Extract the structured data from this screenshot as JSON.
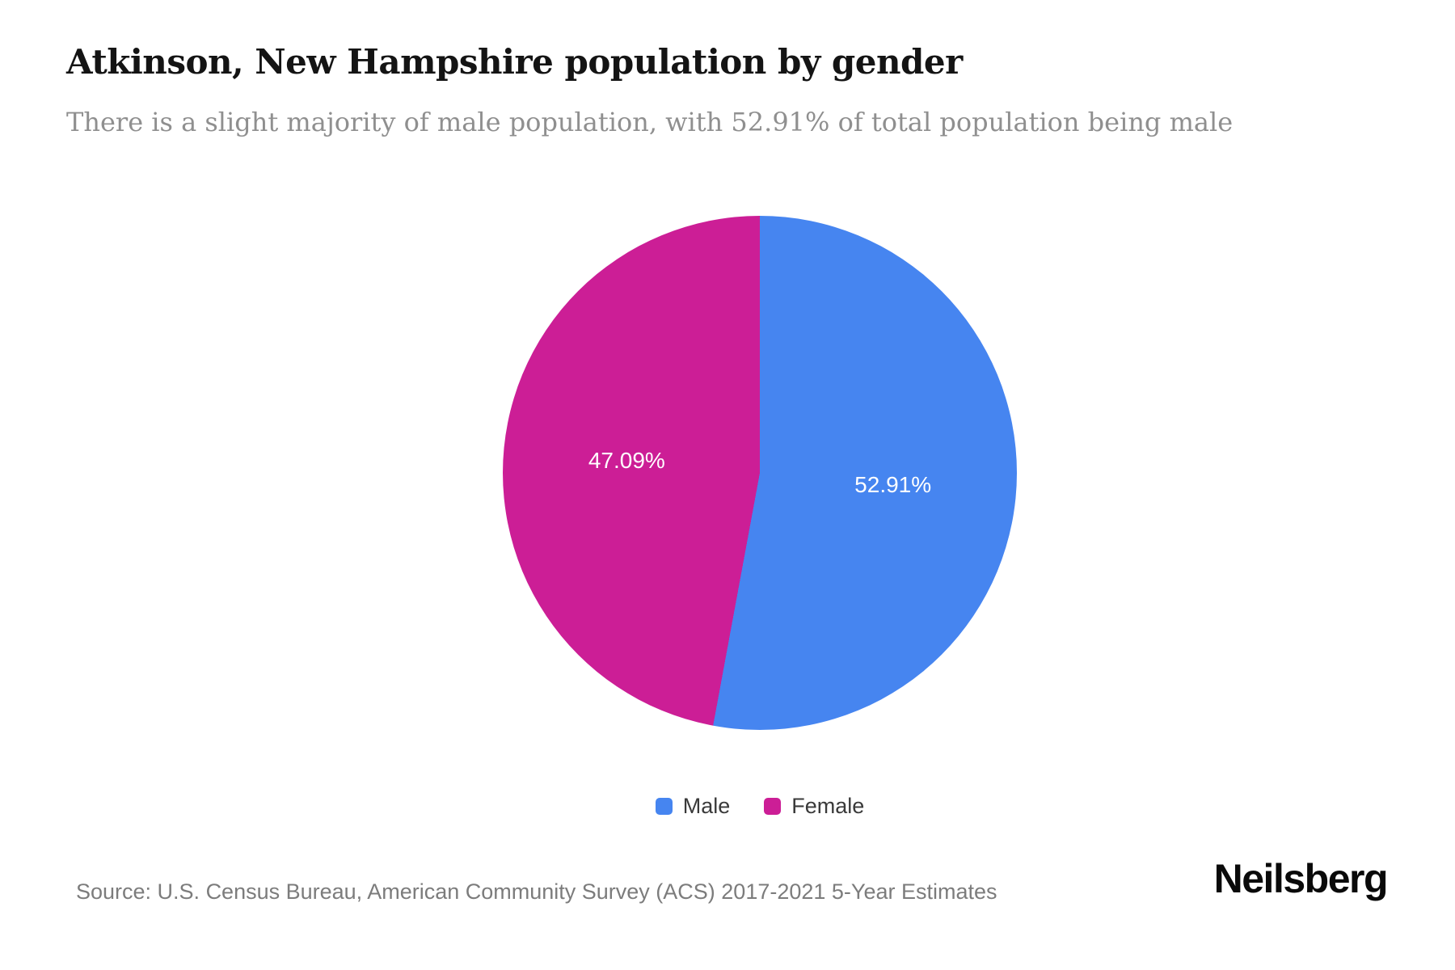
{
  "page": {
    "title": "Atkinson, New Hampshire population by gender",
    "subtitle": "There is a slight majority of male population, with 52.91% of total population being male"
  },
  "chart_data": {
    "type": "pie",
    "title": "Atkinson, New Hampshire population by gender",
    "categories": [
      "Male",
      "Female"
    ],
    "values": [
      52.91,
      47.09
    ],
    "unit": "percent of total population",
    "slice_labels": [
      "52.91%",
      "47.09%"
    ],
    "colors": [
      "#4685F0",
      "#CC1E96"
    ],
    "start_angle_deg": 0,
    "direction": "clockwise",
    "legend_position": "bottom",
    "label_color": "#ffffff"
  },
  "legend": {
    "items": [
      {
        "label": "Male",
        "color": "#4685F0"
      },
      {
        "label": "Female",
        "color": "#CC1E96"
      }
    ]
  },
  "footer": {
    "source": "Source: U.S. Census Bureau, American Community Survey (ACS) 2017-2021 5-Year Estimates",
    "brand": "Neilsberg"
  }
}
